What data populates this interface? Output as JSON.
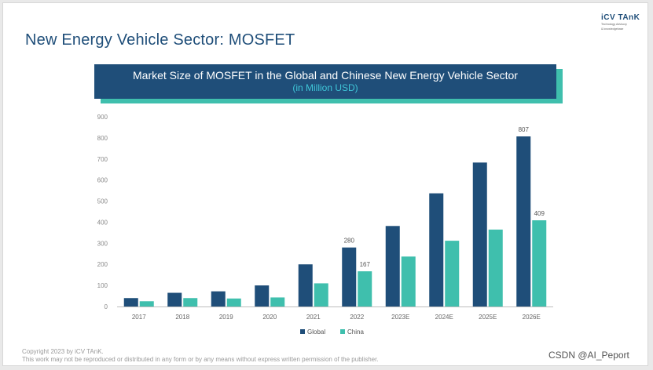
{
  "page": {
    "title": "New Energy Vehicle Sector: MOSFET",
    "logo_main": "iCV TAnK",
    "logo_sub_1": "Technology Advisory",
    "logo_sub_2": "& knowledgebase",
    "footer_line1": "Copyright  2023 by iCV TAnK.",
    "footer_line2": "This work may not be reproduced or distributed in any form or by any means without express written permission of the publisher.",
    "watermark": "CSDN @AI_Peport"
  },
  "chart_data": {
    "type": "bar",
    "title": "Market Size of MOSFET in the Global and Chinese New Energy Vehicle Sector",
    "subtitle": "(in Million USD)",
    "categories": [
      "2017",
      "2018",
      "2019",
      "2020",
      "2021",
      "2022",
      "2023E",
      "2024E",
      "2025E",
      "2026E"
    ],
    "series": [
      {
        "name": "Global",
        "color": "#1f4e79",
        "values": [
          40,
          65,
          72,
          100,
          200,
          280,
          382,
          537,
          683,
          807
        ]
      },
      {
        "name": "China",
        "color": "#3fbfad",
        "values": [
          25,
          40,
          38,
          43,
          110,
          167,
          237,
          312,
          365,
          409
        ]
      }
    ],
    "data_labels": [
      {
        "series": 0,
        "index": 5,
        "text": "280"
      },
      {
        "series": 1,
        "index": 5,
        "text": "167"
      },
      {
        "series": 0,
        "index": 9,
        "text": "807"
      },
      {
        "series": 1,
        "index": 9,
        "text": "409"
      }
    ],
    "ylim": [
      0,
      900
    ],
    "yticks": [
      "0",
      "100",
      "200",
      "300",
      "400",
      "500",
      "600",
      "700",
      "800",
      "900"
    ],
    "grid": false,
    "legend_position": "bottom-center"
  }
}
